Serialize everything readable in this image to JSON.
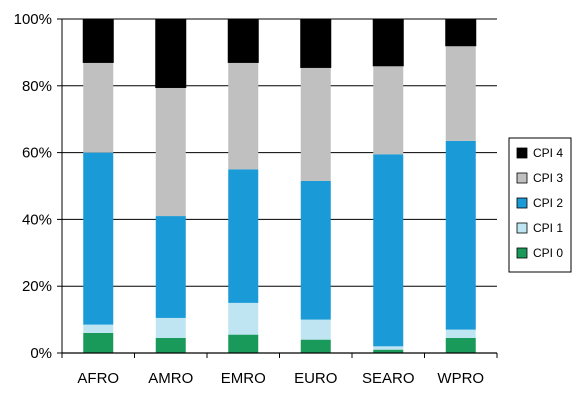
{
  "chart_data": {
    "type": "bar",
    "stacked": true,
    "percent": true,
    "categories": [
      "AFRO",
      "AMRO",
      "EMRO",
      "EURO",
      "SEARO",
      "WPRO"
    ],
    "series": [
      {
        "name": "CPI 0",
        "color": "#1a9a5a",
        "values": [
          6,
          4.5,
          5.5,
          4,
          1,
          4.5
        ]
      },
      {
        "name": "CPI 1",
        "color": "#bfe5f2",
        "values": [
          2.5,
          6,
          9.5,
          6,
          1,
          2.5
        ]
      },
      {
        "name": "CPI 2",
        "color": "#1a9ad6",
        "values": [
          51.5,
          30.5,
          40,
          41.5,
          57.5,
          56.5
        ]
      },
      {
        "name": "CPI 3",
        "color": "#c0c0c0",
        "values": [
          27,
          38.5,
          32,
          34,
          26.5,
          28.5
        ]
      },
      {
        "name": "CPI 4",
        "color": "#000000",
        "values": [
          13,
          20.5,
          13,
          14.5,
          14,
          8
        ]
      }
    ],
    "ylim": [
      0,
      100
    ],
    "yticks": [
      "0%",
      "20%",
      "40%",
      "60%",
      "80%",
      "100%"
    ],
    "ytick_values": [
      0,
      20,
      40,
      60,
      80,
      100
    ],
    "grid": true,
    "legend_position": "right",
    "legend_order": [
      "CPI 4",
      "CPI 3",
      "CPI 2",
      "CPI 1",
      "CPI 0"
    ]
  }
}
